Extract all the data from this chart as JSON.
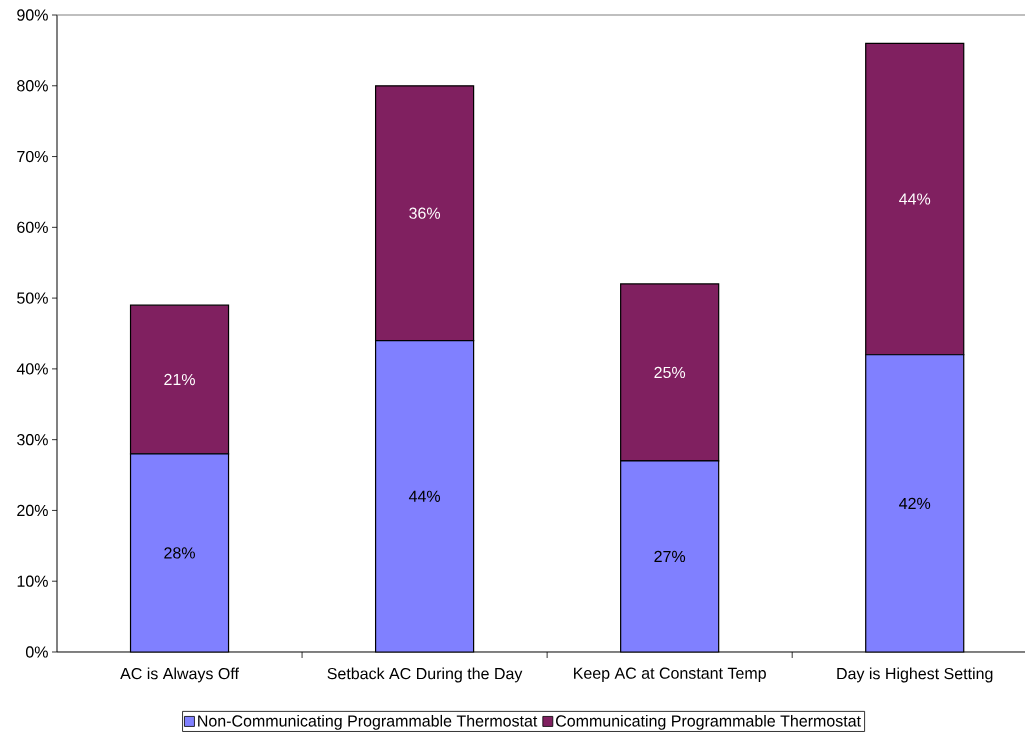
{
  "chart_data": {
    "type": "bar",
    "stacked": true,
    "categories": [
      "AC is Always Off",
      "Setback AC During the Day",
      "Keep AC at Constant Temp",
      "Day is Highest Setting"
    ],
    "series": [
      {
        "name": "Non-Communicating Programmable Thermostat",
        "color": "#8080ff",
        "values": [
          28,
          44,
          27,
          42
        ],
        "value_labels": [
          "28%",
          "44%",
          "27%",
          "42%"
        ]
      },
      {
        "name": "Communicating Programmable Thermostat",
        "color": "#802060",
        "values": [
          21,
          36,
          25,
          44
        ],
        "value_labels": [
          "21%",
          "36%",
          "25%",
          "44%"
        ]
      }
    ],
    "ylim": [
      0,
      90
    ],
    "yticks": [
      {
        "value": 0,
        "label": "0%"
      },
      {
        "value": 10,
        "label": "10%"
      },
      {
        "value": 20,
        "label": "20%"
      },
      {
        "value": 30,
        "label": "30%"
      },
      {
        "value": 40,
        "label": "40%"
      },
      {
        "value": 50,
        "label": "50%"
      },
      {
        "value": 60,
        "label": "60%"
      },
      {
        "value": 70,
        "label": "70%"
      },
      {
        "value": 80,
        "label": "80%"
      },
      {
        "value": 90,
        "label": "90%"
      }
    ],
    "grid": false,
    "legend": "bottom"
  }
}
